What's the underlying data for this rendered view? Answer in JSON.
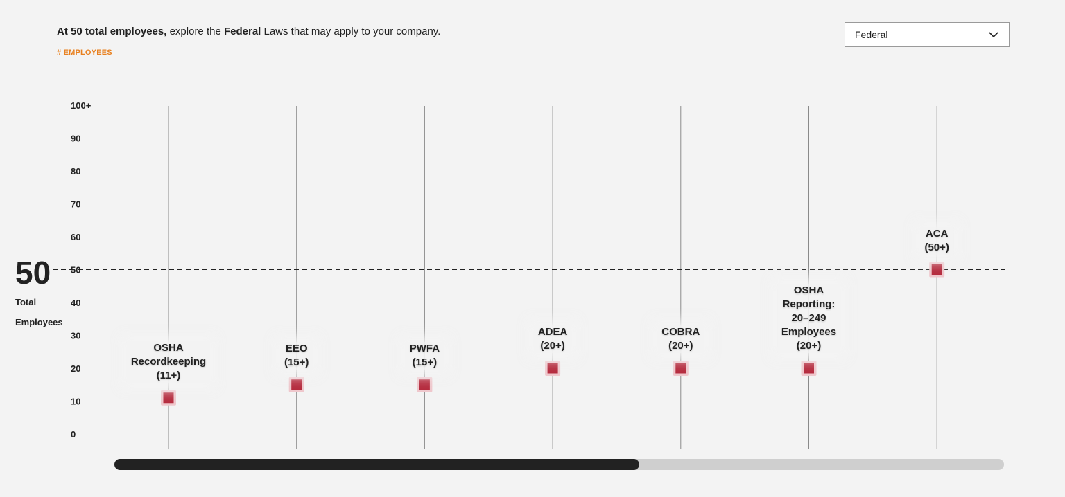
{
  "intro": {
    "prefix": "At",
    "count": "50",
    "bold1": "total employees,",
    "mid": "explore the",
    "bold2": "Federal",
    "suffix": "Laws that may apply to your company."
  },
  "employees_tag": "# EMPLOYEES",
  "jurisdiction_select": {
    "value": "Federal"
  },
  "current": {
    "value": "50",
    "label_line1": "Total",
    "label_line2": "Employees"
  },
  "colors": {
    "marker": "#b52b3e",
    "marker_halo": "#efc7cc",
    "accent": "#e8801f",
    "reference_line": "#222222"
  },
  "chart_data": {
    "type": "scatter",
    "title": "",
    "xlabel": "",
    "ylabel": "# EMPLOYEES",
    "ylim": [
      0,
      100
    ],
    "y_ticks": [
      {
        "value": 0,
        "label": "0"
      },
      {
        "value": 10,
        "label": "10"
      },
      {
        "value": 20,
        "label": "20"
      },
      {
        "value": 30,
        "label": "30"
      },
      {
        "value": 40,
        "label": "40"
      },
      {
        "value": 50,
        "label": "50"
      },
      {
        "value": 60,
        "label": "60"
      },
      {
        "value": 70,
        "label": "70"
      },
      {
        "value": 80,
        "label": "80"
      },
      {
        "value": 90,
        "label": "90"
      },
      {
        "value": 100,
        "label": "100+"
      }
    ],
    "reference_line": 50,
    "grid": false,
    "points": [
      {
        "law": "OSHA Recordkeeping",
        "lines": [
          "OSHA",
          "Recordkeeping",
          "(11+)"
        ],
        "value": 11
      },
      {
        "law": "EEO",
        "lines": [
          "EEO",
          "(15+)"
        ],
        "value": 15
      },
      {
        "law": "PWFA",
        "lines": [
          "PWFA",
          "(15+)"
        ],
        "value": 15
      },
      {
        "law": "ADEA",
        "lines": [
          "ADEA",
          "(20+)"
        ],
        "value": 20
      },
      {
        "law": "COBRA",
        "lines": [
          "COBRA",
          "(20+)"
        ],
        "value": 20
      },
      {
        "law": "OSHA Reporting",
        "lines": [
          "OSHA",
          "Reporting:",
          "20–249",
          "Employees",
          "(20+)"
        ],
        "value": 20
      },
      {
        "law": "ACA",
        "lines": [
          "ACA",
          "(50+)"
        ],
        "value": 50
      }
    ]
  },
  "scrollbar": {
    "position_fraction": 0.59
  }
}
